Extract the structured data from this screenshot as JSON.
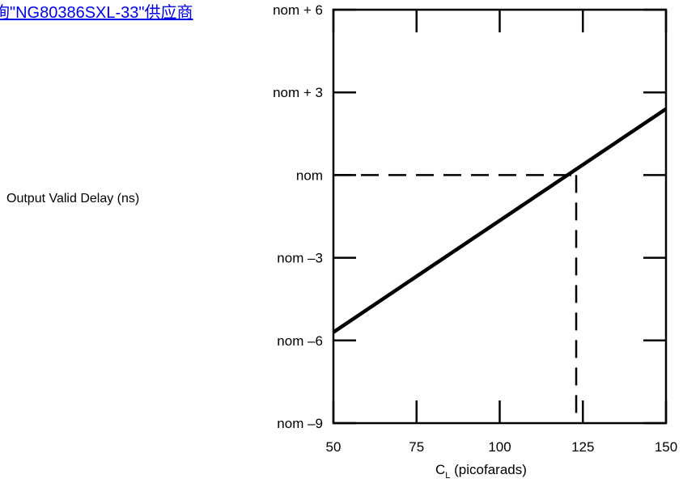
{
  "link": {
    "text": "询\"NG80386SXL-33\"供应商"
  },
  "chart_data": {
    "type": "line",
    "title": "",
    "ylabel": "Output Valid Delay (ns)",
    "xlabel_main": "C",
    "xlabel_sub": "L",
    "xlabel_rest": " (picofarads)",
    "xlim": [
      50,
      150
    ],
    "ylim": [
      -9,
      6
    ],
    "x_ticks": [
      50,
      75,
      100,
      125,
      150
    ],
    "x_tick_labels": [
      "50",
      "75",
      "100",
      "125",
      "150"
    ],
    "y_ticks": [
      6,
      3,
      0,
      -3,
      -6,
      -9
    ],
    "y_tick_labels": [
      "nom + 6",
      "nom + 3",
      "nom",
      "nom –3",
      "nom –6",
      "nom –9"
    ],
    "series": [
      {
        "x": [
          50,
          150
        ],
        "y": [
          -5.7,
          2.4
        ],
        "style": "solid",
        "color": "#000000"
      }
    ],
    "reference_lines": [
      {
        "x": [
          50,
          123
        ],
        "y": [
          0,
          0
        ],
        "style": "dashed"
      },
      {
        "x": [
          123,
          123
        ],
        "y": [
          0,
          -9
        ],
        "style": "dashed"
      }
    ],
    "grid": false
  }
}
